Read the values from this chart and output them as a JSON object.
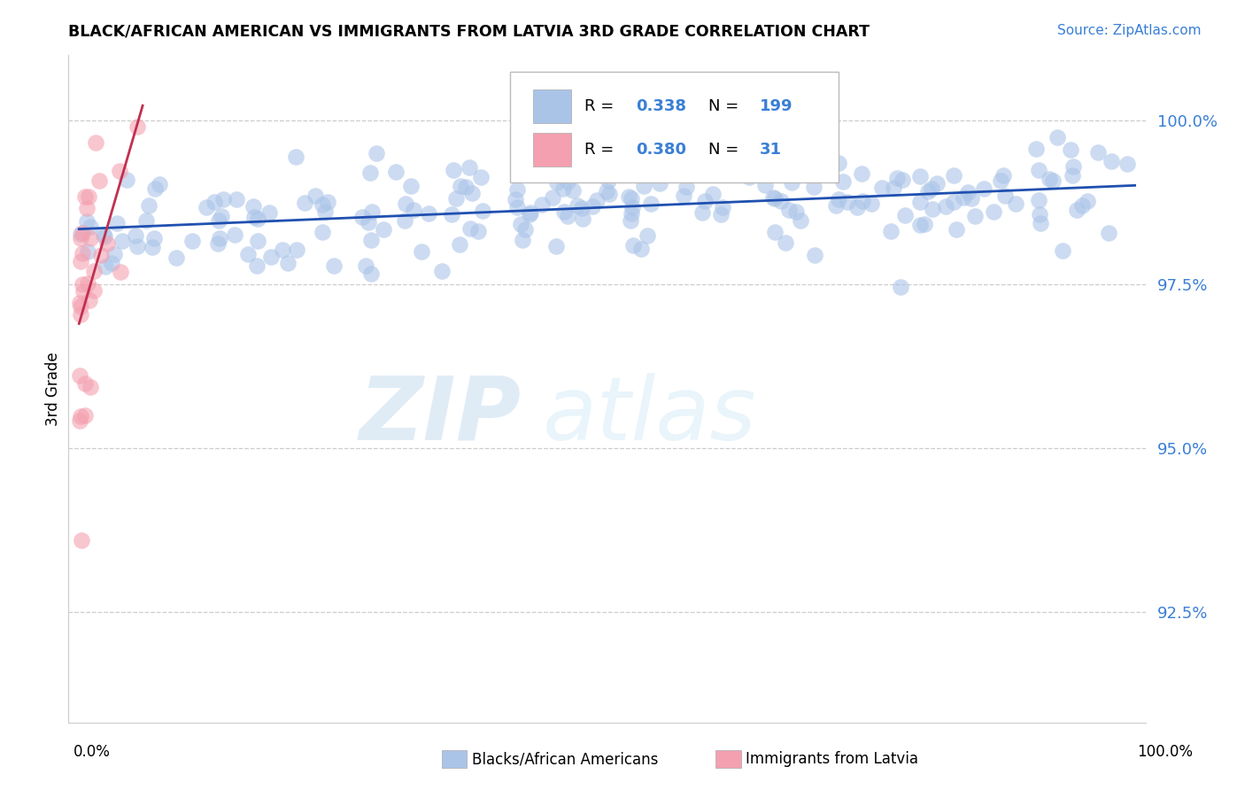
{
  "title": "BLACK/AFRICAN AMERICAN VS IMMIGRANTS FROM LATVIA 3RD GRADE CORRELATION CHART",
  "source_text": "Source: ZipAtlas.com",
  "ylabel": "3rd Grade",
  "ylim": [
    0.908,
    1.01
  ],
  "xlim": [
    -0.01,
    1.01
  ],
  "ytick_vals": [
    0.925,
    0.95,
    0.975,
    1.0
  ],
  "ytick_labels": [
    "92.5%",
    "95.0%",
    "97.5%",
    "100.0%"
  ],
  "blue_R": 0.338,
  "blue_N": 199,
  "pink_R": 0.38,
  "pink_N": 31,
  "blue_color": "#aac4e8",
  "pink_color": "#f4a0b0",
  "blue_line_color": "#2050b0",
  "pink_line_color": "#c03050",
  "legend_blue_label": "Blacks/African Americans",
  "legend_pink_label": "Immigrants from Latvia",
  "watermark_zip": "ZIP",
  "watermark_atlas": "atlas",
  "bg_color": "white",
  "grid_color": "#cccccc",
  "title_color": "black",
  "source_color": "#3a7fd5",
  "ytick_color": "#3a7fd5"
}
